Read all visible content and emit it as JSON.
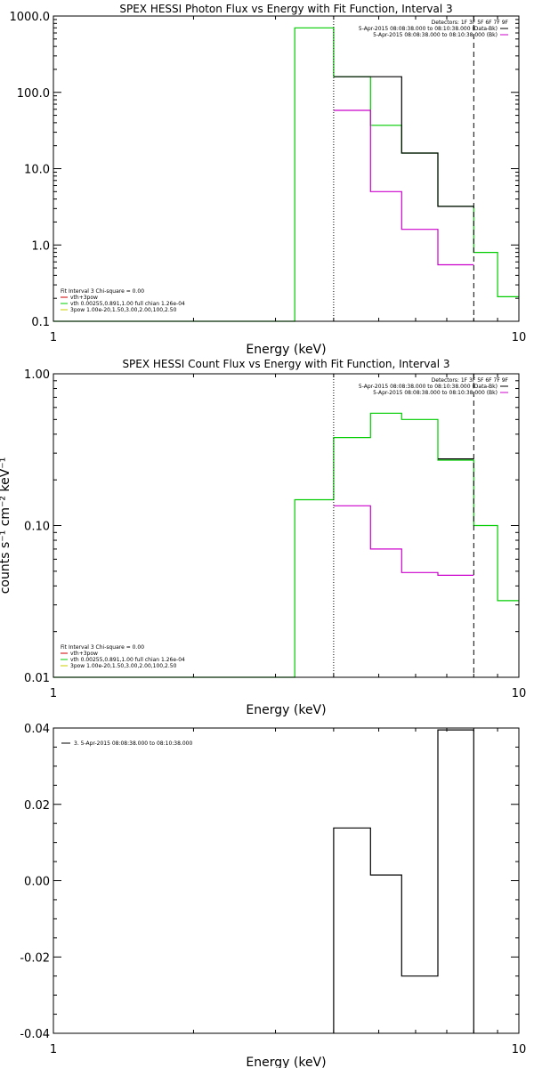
{
  "chart_data": [
    {
      "type": "step-line",
      "title": "SPEX HESSI Photon Flux vs Energy with Fit Function, Interval 3",
      "xlabel": "Energy (keV)",
      "ylabel": "",
      "xscale": "log",
      "yscale": "log",
      "xlim": [
        1,
        10
      ],
      "ylim": [
        0.1,
        1000
      ],
      "x_ticks": [
        "1",
        "10"
      ],
      "y_ticks": [
        "0.1",
        "1.0",
        "10.0",
        "100.0",
        "1000.0"
      ],
      "vlines": [
        {
          "x": 4,
          "style": "dotted"
        },
        {
          "x": 8,
          "style": "dashed"
        }
      ],
      "detectors_text": "Detectors: 1F 3F 5F 6F 7F 9F",
      "top_legend": [
        {
          "text": "5-Apr-2015 08:08:38.000 to 08:10:38.000 (Data-Bk)",
          "color": "#000000"
        },
        {
          "text": "5-Apr-2015 08:08:38.000 to 08:10:38.000 (Bk)",
          "color": "#cc00cc"
        }
      ],
      "fit_header": "Fit Interval 3   Chi-square = 0.00",
      "fit_legend": [
        {
          "text": "vth+3pow",
          "color": "#cc0000"
        },
        {
          "text": "vth 0.00255,0.891,1.00  full chian 1.26e-04",
          "color": "#00cc00"
        },
        {
          "text": "3pow 1.00e-20,1.50,3.00,2.00,100,2.50",
          "color": "#cccc00"
        }
      ],
      "series": [
        {
          "color": "#00cc00",
          "edges": [
            1,
            3.3,
            4,
            4.8,
            5.6,
            6.7,
            8,
            9,
            10
          ],
          "values": [
            0.1,
            700,
            160,
            37,
            16,
            3.2,
            0.8,
            0.21
          ]
        },
        {
          "color": "#000000",
          "edges": [
            4,
            5.6,
            6.7,
            8
          ],
          "values": [
            160,
            16,
            3.2
          ]
        },
        {
          "color": "#cc00cc",
          "edges": [
            4,
            4.8,
            5.6,
            6.7,
            8
          ],
          "values": [
            58,
            5,
            1.6,
            0.55
          ]
        }
      ]
    },
    {
      "type": "step-line",
      "title": "SPEX HESSI Count Flux vs Energy with Fit Function, Interval 3",
      "xlabel": "Energy (keV)",
      "ylabel": "counts s⁻¹ cm⁻² keV⁻¹",
      "xscale": "log",
      "yscale": "log",
      "xlim": [
        1,
        10
      ],
      "ylim": [
        0.01,
        1
      ],
      "x_ticks": [
        "1",
        "10"
      ],
      "y_ticks": [
        "0.01",
        "0.10",
        "1.00"
      ],
      "vlines": [
        {
          "x": 4,
          "style": "dotted"
        },
        {
          "x": 8,
          "style": "dashed"
        }
      ],
      "detectors_text": "Detectors: 1F 3F 5F 6F 7F 9F",
      "top_legend": [
        {
          "text": "5-Apr-2015 08:08:38.000 to 08:10:38.000 (Data-Bk)",
          "color": "#000000"
        },
        {
          "text": "5-Apr-2015 08:08:38.000 to 08:10:38.000 (Bk)",
          "color": "#cc00cc"
        }
      ],
      "fit_header": "Fit Interval 3   Chi-square = 0.00",
      "fit_legend": [
        {
          "text": "vth+3pow",
          "color": "#cc0000"
        },
        {
          "text": "vth 0.00255,0.891,1.00  full chian 1.26e-04",
          "color": "#00cc00"
        },
        {
          "text": "3pow 1.00e-20,1.50,3.00,2.00,100,2.50",
          "color": "#cccc00"
        }
      ],
      "series": [
        {
          "color": "#00cc00",
          "edges": [
            1,
            3.3,
            4,
            4.8,
            5.6,
            6.7,
            8,
            9,
            10
          ],
          "values": [
            0.01,
            0.148,
            0.38,
            0.55,
            0.5,
            0.27,
            0.1,
            0.032
          ]
        },
        {
          "color": "#000000",
          "edges": [
            6.7,
            8
          ],
          "values": [
            0.275
          ]
        },
        {
          "color": "#cc00cc",
          "edges": [
            4,
            4.8,
            5.6,
            6.7,
            8
          ],
          "values": [
            0.135,
            0.07,
            0.049,
            0.047
          ]
        }
      ]
    },
    {
      "type": "step-line",
      "title": "",
      "xlabel": "Energy (keV)",
      "ylabel": "",
      "xscale": "log",
      "yscale": "linear",
      "xlim": [
        1,
        10
      ],
      "ylim": [
        -0.04,
        0.04
      ],
      "x_ticks": [
        "1",
        "10"
      ],
      "y_ticks": [
        "-0.04",
        "-0.02",
        "0.00",
        "0.02",
        "0.04"
      ],
      "legend": [
        {
          "text": "3.  5-Apr-2015 08:08:38.000 to 08:10:38.000",
          "color": "#000000"
        }
      ],
      "series": [
        {
          "color": "#000000",
          "edges": [
            4,
            4.8,
            5.6,
            6.7,
            8
          ],
          "values": [
            0.0138,
            0.0015,
            -0.025,
            0.0395
          ],
          "baseline": -0.04
        }
      ]
    }
  ]
}
